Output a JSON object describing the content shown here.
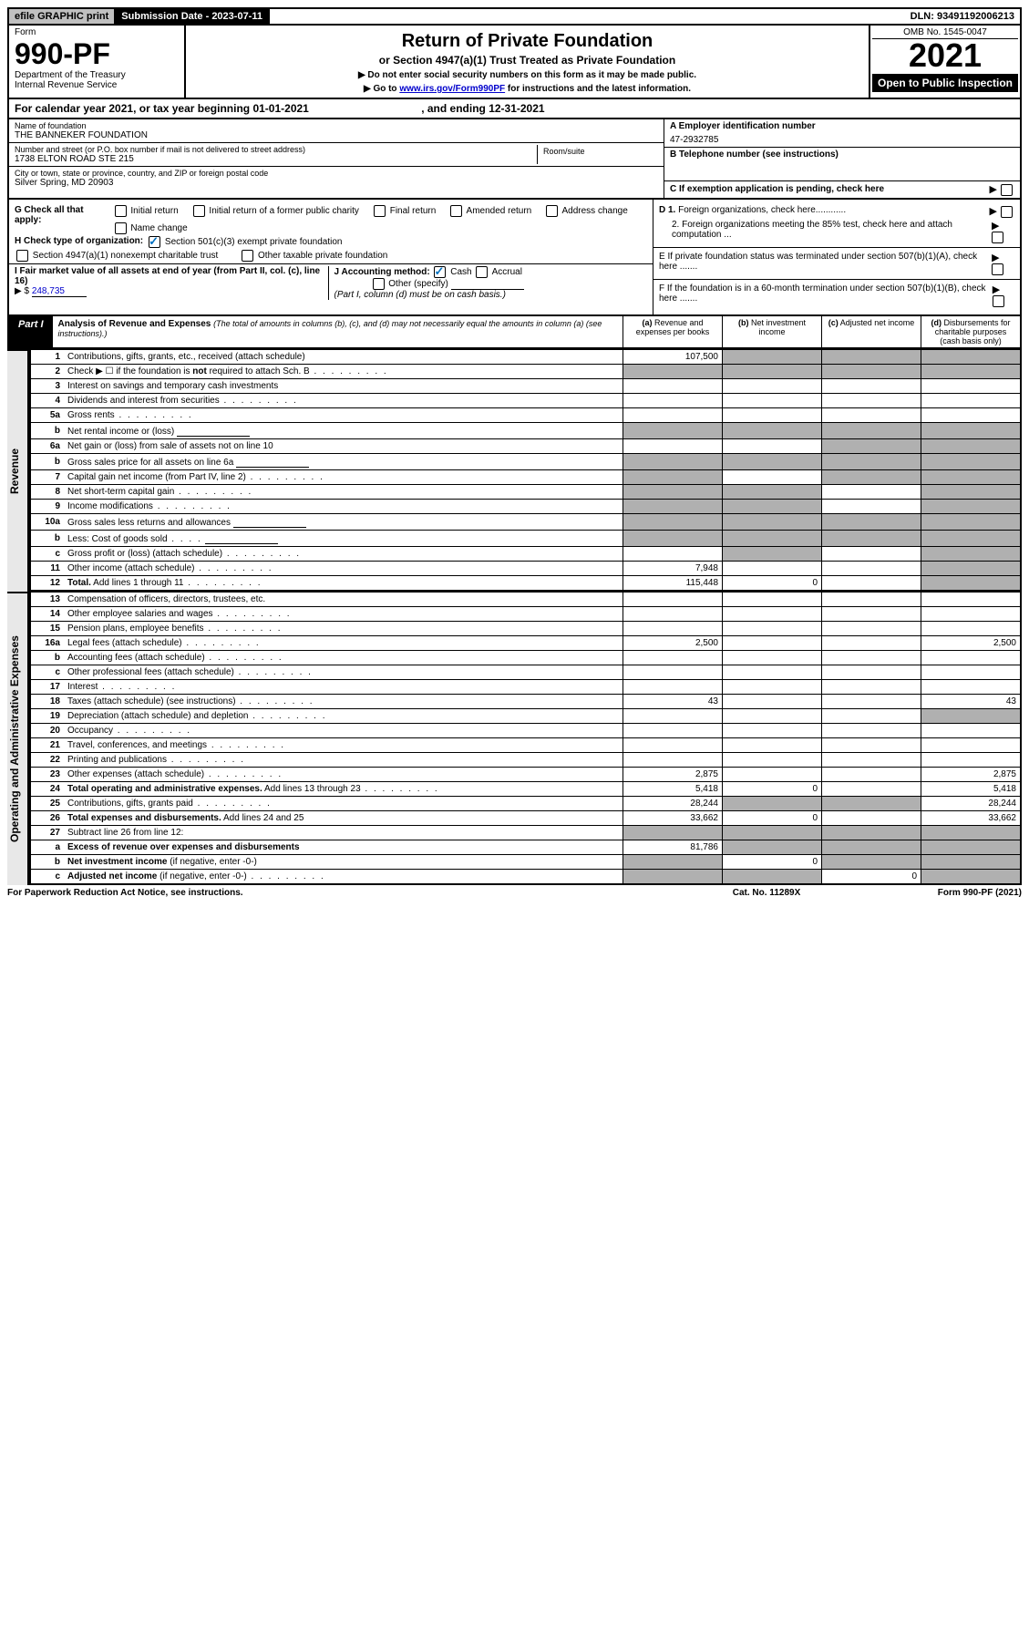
{
  "top": {
    "efile": "efile GRAPHIC print",
    "sub_date_label": "Submission Date - 2023-07-11",
    "dln": "DLN: 93491192006213"
  },
  "header": {
    "form_label": "Form",
    "form_num": "990-PF",
    "dept": "Department of the Treasury",
    "irs": "Internal Revenue Service",
    "title": "Return of Private Foundation",
    "subtitle": "or Section 4947(a)(1) Trust Treated as Private Foundation",
    "note1": "▶ Do not enter social security numbers on this form as it may be made public.",
    "note2_pre": "▶ Go to ",
    "note2_link": "www.irs.gov/Form990PF",
    "note2_post": " for instructions and the latest information.",
    "omb": "OMB No. 1545-0047",
    "year": "2021",
    "open": "Open to Public Inspection"
  },
  "cal": {
    "text_pre": "For calendar year 2021, or tax year beginning ",
    "begin": "01-01-2021",
    "mid": " , and ending ",
    "end": "12-31-2021"
  },
  "org": {
    "name_label": "Name of foundation",
    "name": "THE BANNEKER FOUNDATION",
    "addr_label": "Number and street (or P.O. box number if mail is not delivered to street address)",
    "addr": "1738 ELTON ROAD STE 215",
    "room_label": "Room/suite",
    "city_label": "City or town, state or province, country, and ZIP or foreign postal code",
    "city": "Silver Spring, MD  20903",
    "ein_label": "A Employer identification number",
    "ein": "47-2932785",
    "phone_label": "B Telephone number (see instructions)",
    "c_label": "C If exemption application is pending, check here"
  },
  "checks": {
    "g_label": "G Check all that apply:",
    "g_opts": [
      "Initial return",
      "Initial return of a former public charity",
      "Final return",
      "Amended return",
      "Address change",
      "Name change"
    ],
    "h_label": "H Check type of organization:",
    "h1": "Section 501(c)(3) exempt private foundation",
    "h2": "Section 4947(a)(1) nonexempt charitable trust",
    "h3": "Other taxable private foundation",
    "i_label": "I Fair market value of all assets at end of year (from Part II, col. (c), line 16)",
    "i_val": "248,735",
    "i_prefix": "▶ $",
    "j_label": "J Accounting method:",
    "j_cash": "Cash",
    "j_accrual": "Accrual",
    "j_other": "Other (specify)",
    "j_note": "(Part I, column (d) must be on cash basis.)",
    "d1": "D 1. Foreign organizations, check here............",
    "d2": "2. Foreign organizations meeting the 85% test, check here and attach computation ...",
    "e": "E  If private foundation status was terminated under section 507(b)(1)(A), check here .......",
    "f": "F  If the foundation is in a 60-month termination under section 507(b)(1)(B), check here .......",
    "arrow": "▶"
  },
  "part1": {
    "label": "Part I",
    "title": "Analysis of Revenue and Expenses",
    "note": "(The total of amounts in columns (b), (c), and (d) may not necessarily equal the amounts in column (a) (see instructions).)",
    "col_a": "(a) Revenue and expenses per books",
    "col_b": "(b) Net investment income",
    "col_c": "(c) Adjusted net income",
    "col_d": "(d) Disbursements for charitable purposes (cash basis only)"
  },
  "sections": {
    "revenue": "Revenue",
    "expenses": "Operating and Administrative Expenses"
  },
  "rows": [
    {
      "n": "1",
      "d": "Contributions, gifts, grants, etc., received (attach schedule)",
      "a": "107,500",
      "shade_bcd": true
    },
    {
      "n": "2",
      "d": "Check ▶ ☐ if the foundation is <b>not</b> required to attach Sch. B",
      "dots": true,
      "no_ab": true,
      "shade_all": true
    },
    {
      "n": "3",
      "d": "Interest on savings and temporary cash investments",
      "a": ""
    },
    {
      "n": "4",
      "d": "Dividends and interest from securities",
      "dots": true,
      "a": ""
    },
    {
      "n": "5a",
      "d": "Gross rents",
      "dots": true,
      "a": ""
    },
    {
      "n": "b",
      "d": "Net rental income or (loss)",
      "sub": true,
      "shade_all": true
    },
    {
      "n": "6a",
      "d": "Net gain or (loss) from sale of assets not on line 10",
      "a": "",
      "shade_bcd_partial": "cd"
    },
    {
      "n": "b",
      "d": "Gross sales price for all assets on line 6a",
      "sub": true,
      "shade_all": true
    },
    {
      "n": "7",
      "d": "Capital gain net income (from Part IV, line 2)",
      "dots": true,
      "shade_a": true,
      "shade_cd": true
    },
    {
      "n": "8",
      "d": "Net short-term capital gain",
      "dots": true,
      "shade_ab": true,
      "shade_d": true
    },
    {
      "n": "9",
      "d": "Income modifications",
      "dots": true,
      "shade_ab": true,
      "shade_d": true
    },
    {
      "n": "10a",
      "d": "Gross sales less returns and allowances",
      "sub": true,
      "shade_all": true
    },
    {
      "n": "b",
      "d": "Less: Cost of goods sold",
      "dots_short": true,
      "sub": true,
      "shade_all": true
    },
    {
      "n": "c",
      "d": "Gross profit or (loss) (attach schedule)",
      "dots": true,
      "shade_b": true,
      "shade_d": true
    },
    {
      "n": "11",
      "d": "Other income (attach schedule)",
      "dots": true,
      "a": "7,948",
      "shade_d": true
    },
    {
      "n": "12",
      "d": "<b>Total.</b> Add lines 1 through 11",
      "dots": true,
      "a": "115,448",
      "b": "0",
      "shade_d": true,
      "bold": true
    }
  ],
  "exp_rows": [
    {
      "n": "13",
      "d": "Compensation of officers, directors, trustees, etc."
    },
    {
      "n": "14",
      "d": "Other employee salaries and wages",
      "dots": true
    },
    {
      "n": "15",
      "d": "Pension plans, employee benefits",
      "dots": true
    },
    {
      "n": "16a",
      "d": "Legal fees (attach schedule)",
      "dots": true,
      "a": "2,500",
      "dd": "2,500"
    },
    {
      "n": "b",
      "d": "Accounting fees (attach schedule)",
      "dots": true
    },
    {
      "n": "c",
      "d": "Other professional fees (attach schedule)",
      "dots": true
    },
    {
      "n": "17",
      "d": "Interest",
      "dots": true
    },
    {
      "n": "18",
      "d": "Taxes (attach schedule) (see instructions)",
      "dots": true,
      "a": "43",
      "dd": "43"
    },
    {
      "n": "19",
      "d": "Depreciation (attach schedule) and depletion",
      "dots": true,
      "shade_d": true
    },
    {
      "n": "20",
      "d": "Occupancy",
      "dots": true
    },
    {
      "n": "21",
      "d": "Travel, conferences, and meetings",
      "dots": true
    },
    {
      "n": "22",
      "d": "Printing and publications",
      "dots": true
    },
    {
      "n": "23",
      "d": "Other expenses (attach schedule)",
      "dots": true,
      "a": "2,875",
      "dd": "2,875"
    },
    {
      "n": "24",
      "d": "<b>Total operating and administrative expenses.</b> Add lines 13 through 23",
      "dots": true,
      "a": "5,418",
      "b": "0",
      "dd": "5,418"
    },
    {
      "n": "25",
      "d": "Contributions, gifts, grants paid",
      "dots": true,
      "a": "28,244",
      "shade_bc": true,
      "dd": "28,244"
    },
    {
      "n": "26",
      "d": "<b>Total expenses and disbursements.</b> Add lines 24 and 25",
      "a": "33,662",
      "b": "0",
      "dd": "33,662"
    },
    {
      "n": "27",
      "d": "Subtract line 26 from line 12:",
      "shade_all": true
    },
    {
      "n": "a",
      "d": "<b>Excess of revenue over expenses and disbursements</b>",
      "a": "81,786",
      "shade_bcd": true
    },
    {
      "n": "b",
      "d": "<b>Net investment income</b> (if negative, enter -0-)",
      "shade_a": true,
      "b": "0",
      "shade_cd": true
    },
    {
      "n": "c",
      "d": "<b>Adjusted net income</b> (if negative, enter -0-)",
      "dots": true,
      "shade_ab": true,
      "c": "0",
      "shade_d": true
    }
  ],
  "footer": {
    "pra": "For Paperwork Reduction Act Notice, see instructions.",
    "cat": "Cat. No. 11289X",
    "form": "Form 990-PF (2021)"
  }
}
